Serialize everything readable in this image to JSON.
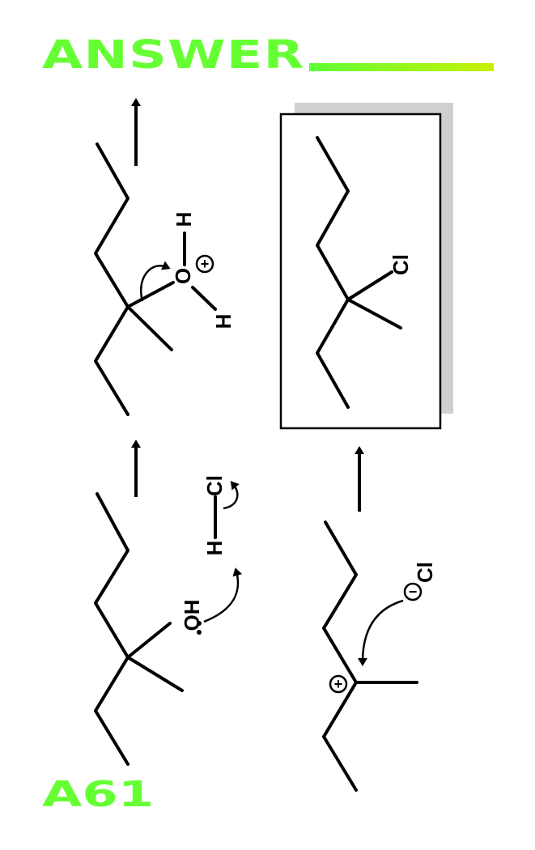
{
  "header": {
    "title": "ANSWER",
    "accent_colors": [
      "#5fff38",
      "#c8f000"
    ]
  },
  "footer": {
    "card_id": "A61"
  },
  "scheme": {
    "step1": {
      "oh_label": "OH",
      "h_label": "H",
      "cl_label": "Cl"
    },
    "step2": {
      "o_label": "O",
      "h_top_label": "H",
      "h_bottom_label": "H",
      "charge_symbol": "+"
    },
    "step3": {
      "cation_charge": "+",
      "chloride_label": "Cl",
      "chloride_charge": "−"
    },
    "product": {
      "cl_label": "Cl",
      "box_shadow_color": "#d0d0d0"
    }
  }
}
